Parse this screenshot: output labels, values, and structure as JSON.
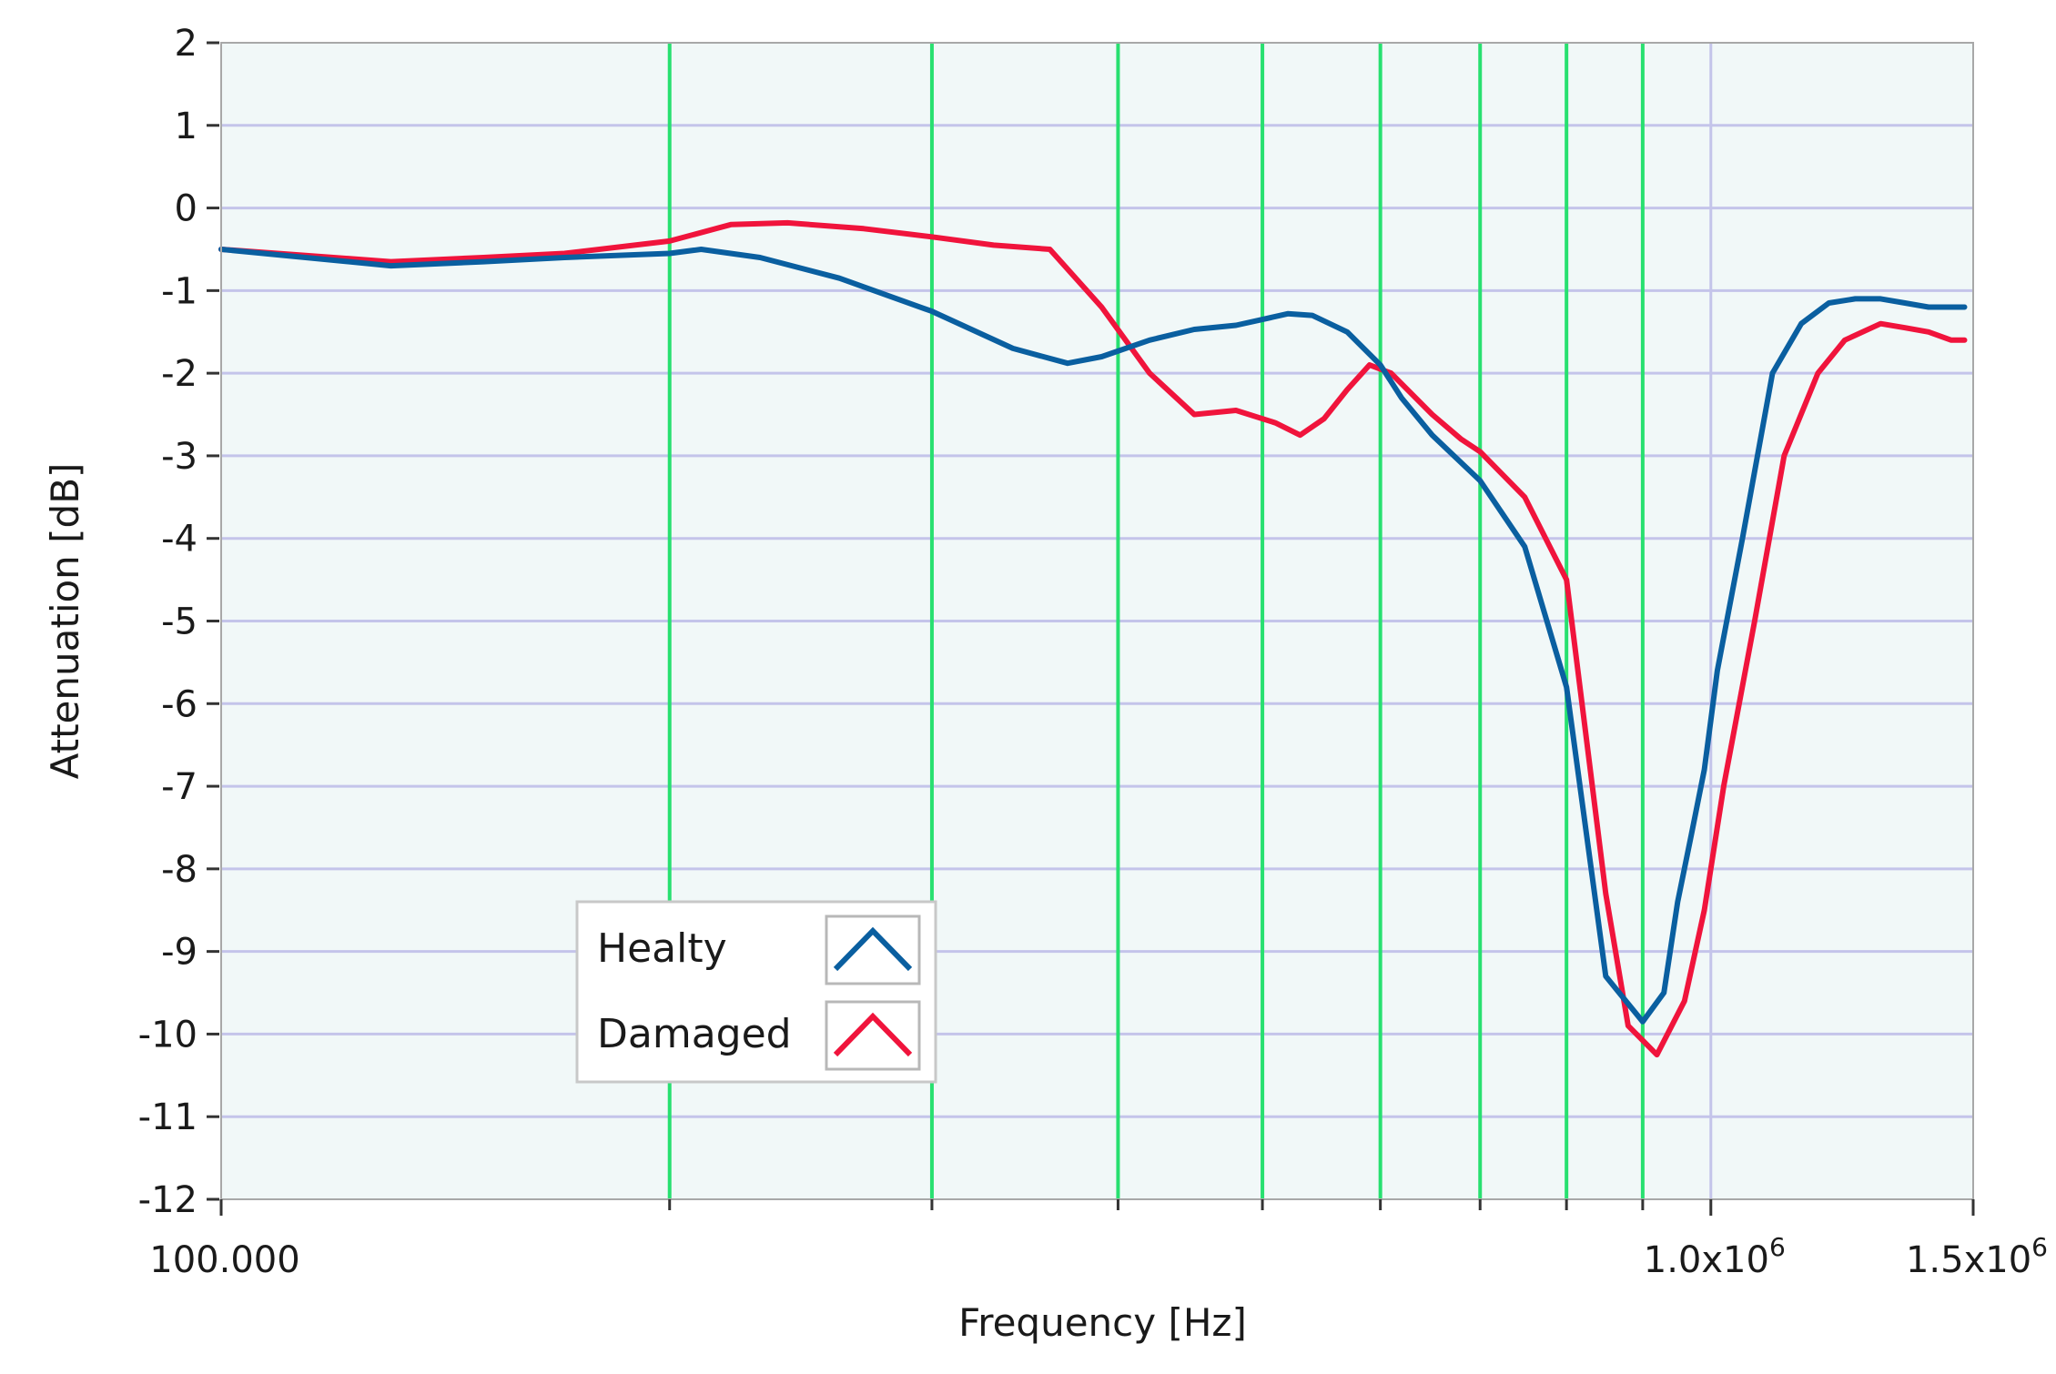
{
  "chart_data": {
    "type": "line",
    "title": "",
    "xlabel": "Frequency [Hz]",
    "ylabel": "Attenuation [dB]",
    "x_scale": "log",
    "xlim": [
      100000,
      1500000
    ],
    "ylim": [
      -12,
      2
    ],
    "y_ticks": [
      2,
      1,
      0,
      -1,
      -2,
      -3,
      -4,
      -5,
      -6,
      -7,
      -8,
      -9,
      -10,
      -11,
      -12
    ],
    "x_tick_labels": [
      {
        "value": 100000,
        "text": "100.000"
      },
      {
        "value": 1000000,
        "text": "1.0x10",
        "sup": "6"
      },
      {
        "value": 1500000,
        "text": "1.5x10",
        "sup": "6"
      }
    ],
    "x_minor_ticks": [
      200000,
      300000,
      400000,
      500000,
      600000,
      700000,
      800000,
      900000
    ],
    "vertical_markers": [
      200000,
      300000,
      400000,
      500000,
      600000,
      700000,
      800000,
      900000
    ],
    "grid": true,
    "legend_position": "lower-left",
    "colors": {
      "Healty": "#0a5fa0",
      "Damaged": "#f0143c",
      "markers": "#28e070",
      "grid": "#c4c4ea",
      "plot_background": "#f1f8f8"
    },
    "series": [
      {
        "name": "Healty",
        "x": [
          100000,
          130000,
          150000,
          170000,
          200000,
          210000,
          230000,
          260000,
          300000,
          340000,
          370000,
          390000,
          420000,
          450000,
          480000,
          500000,
          520000,
          540000,
          570000,
          600000,
          620000,
          650000,
          700000,
          750000,
          800000,
          850000,
          900000,
          930000,
          950000,
          970000,
          990000,
          1010000,
          1050000,
          1100000,
          1150000,
          1200000,
          1250000,
          1300000,
          1350000,
          1400000,
          1450000,
          1480000
        ],
        "values": [
          -0.5,
          -0.7,
          -0.65,
          -0.6,
          -0.55,
          -0.5,
          -0.6,
          -0.85,
          -1.25,
          -1.7,
          -1.88,
          -1.8,
          -1.6,
          -1.47,
          -1.42,
          -1.35,
          -1.28,
          -1.3,
          -1.5,
          -1.9,
          -2.3,
          -2.75,
          -3.3,
          -4.1,
          -5.8,
          -9.3,
          -9.85,
          -9.5,
          -8.4,
          -7.6,
          -6.8,
          -5.6,
          -4.0,
          -2.0,
          -1.4,
          -1.15,
          -1.1,
          -1.1,
          -1.15,
          -1.2,
          -1.2,
          -1.2
        ]
      },
      {
        "name": "Damaged",
        "x": [
          100000,
          130000,
          150000,
          170000,
          200000,
          220000,
          240000,
          270000,
          300000,
          330000,
          360000,
          390000,
          420000,
          450000,
          480000,
          510000,
          530000,
          550000,
          570000,
          590000,
          610000,
          650000,
          680000,
          700000,
          750000,
          800000,
          850000,
          880000,
          920000,
          960000,
          990000,
          1020000,
          1070000,
          1120000,
          1180000,
          1230000,
          1300000,
          1350000,
          1400000,
          1450000,
          1480000
        ],
        "values": [
          -0.5,
          -0.65,
          -0.6,
          -0.55,
          -0.4,
          -0.2,
          -0.18,
          -0.25,
          -0.35,
          -0.45,
          -0.5,
          -1.2,
          -2.0,
          -2.5,
          -2.45,
          -2.6,
          -2.75,
          -2.55,
          -2.2,
          -1.9,
          -2.0,
          -2.5,
          -2.8,
          -2.95,
          -3.5,
          -4.5,
          -8.3,
          -9.9,
          -10.25,
          -9.6,
          -8.5,
          -7.0,
          -5.0,
          -3.0,
          -2.0,
          -1.6,
          -1.4,
          -1.45,
          -1.5,
          -1.6,
          -1.6
        ]
      }
    ]
  }
}
